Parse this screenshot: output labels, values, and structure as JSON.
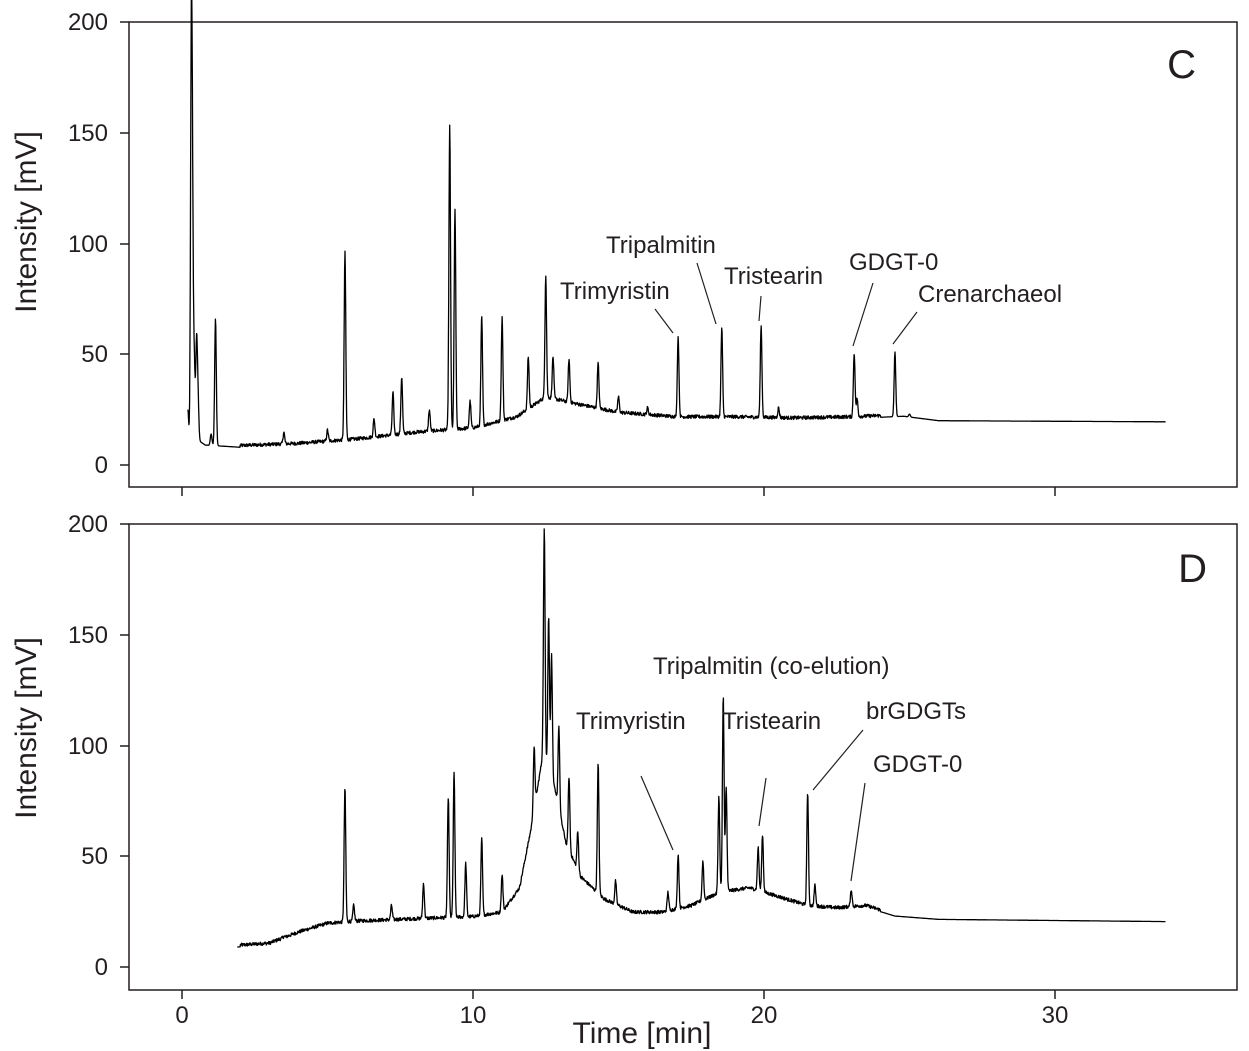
{
  "chart_data": [
    {
      "type": "line",
      "panel_label": "C",
      "xlabel": "",
      "ylabel": "Intensity [mV]",
      "xlim": [
        -1.8,
        36
      ],
      "ylim": [
        -10,
        200
      ],
      "x_ticks": [
        0,
        10,
        20,
        30
      ],
      "x_tick_labels": [
        "",
        "",
        "",
        ""
      ],
      "y_ticks": [
        0,
        50,
        100,
        150,
        200
      ],
      "y_tick_labels": [
        "0",
        "50",
        "100",
        "150",
        "200"
      ],
      "grid": false,
      "baseline": [
        [
          0.2,
          7
        ],
        [
          0.35,
          13
        ],
        [
          0.8,
          9
        ],
        [
          2,
          8
        ],
        [
          4,
          9
        ],
        [
          6,
          11
        ],
        [
          8,
          14
        ],
        [
          10,
          16
        ],
        [
          11.5,
          21
        ],
        [
          12.5,
          30
        ],
        [
          13.5,
          27
        ],
        [
          15,
          23
        ],
        [
          17,
          21
        ],
        [
          19,
          21
        ],
        [
          21,
          20.5
        ],
        [
          23,
          21
        ],
        [
          24.8,
          22
        ],
        [
          26,
          20
        ],
        [
          33.8,
          19.5
        ]
      ],
      "peaks": [
        {
          "x": 0.2,
          "y": 25
        },
        {
          "x": 0.32,
          "y": 180
        },
        {
          "x": 0.36,
          "y": 96
        },
        {
          "x": 0.42,
          "y": 45
        },
        {
          "x": 0.5,
          "y": 55
        },
        {
          "x": 0.55,
          "y": 30
        },
        {
          "x": 1.0,
          "y": 14
        },
        {
          "x": 1.15,
          "y": 66
        },
        {
          "x": 3.5,
          "y": 14
        },
        {
          "x": 5.0,
          "y": 15
        },
        {
          "x": 5.6,
          "y": 95
        },
        {
          "x": 6.6,
          "y": 20
        },
        {
          "x": 7.25,
          "y": 32
        },
        {
          "x": 7.55,
          "y": 39
        },
        {
          "x": 8.5,
          "y": 24
        },
        {
          "x": 9.2,
          "y": 152
        },
        {
          "x": 9.38,
          "y": 114
        },
        {
          "x": 9.9,
          "y": 28
        },
        {
          "x": 10.3,
          "y": 66
        },
        {
          "x": 11.0,
          "y": 66
        },
        {
          "x": 11.9,
          "y": 48
        },
        {
          "x": 12.5,
          "y": 85
        },
        {
          "x": 12.75,
          "y": 48
        },
        {
          "x": 13.3,
          "y": 47
        },
        {
          "x": 14.3,
          "y": 45
        },
        {
          "x": 15.0,
          "y": 30
        },
        {
          "x": 16.0,
          "y": 25
        },
        {
          "x": 17.05,
          "y": 57
        },
        {
          "x": 18.55,
          "y": 61
        },
        {
          "x": 19.9,
          "y": 62
        },
        {
          "x": 20.5,
          "y": 25
        },
        {
          "x": 23.1,
          "y": 50
        },
        {
          "x": 23.2,
          "y": 29
        },
        {
          "x": 24.5,
          "y": 51
        },
        {
          "x": 25.0,
          "y": 23
        }
      ],
      "annotations": [
        {
          "text": "Trimyristin",
          "x": 17.05,
          "y": 57
        },
        {
          "text": "Tripalmitin",
          "x": 18.55,
          "y": 61
        },
        {
          "text": "Tristearin",
          "x": 19.9,
          "y": 62
        },
        {
          "text": "GDGT-0",
          "x": 23.1,
          "y": 50
        },
        {
          "text": "Crenarchaeol",
          "x": 24.5,
          "y": 51
        }
      ]
    },
    {
      "type": "line",
      "panel_label": "D",
      "xlabel": "Time [min]",
      "ylabel": "Intensity [mV]",
      "xlim": [
        -1.8,
        36
      ],
      "ylim": [
        -10,
        200
      ],
      "x_ticks": [
        0,
        10,
        20,
        30
      ],
      "x_tick_labels": [
        "0",
        "10",
        "20",
        "30"
      ],
      "y_ticks": [
        0,
        50,
        100,
        150,
        200
      ],
      "y_tick_labels": [
        "0",
        "50",
        "100",
        "150",
        "200"
      ],
      "grid": false,
      "baseline": [
        [
          1.9,
          9
        ],
        [
          3,
          10
        ],
        [
          4,
          15
        ],
        [
          5,
          19
        ],
        [
          6,
          20
        ],
        [
          8,
          21
        ],
        [
          10,
          22
        ],
        [
          11,
          24
        ],
        [
          11.6,
          35
        ],
        [
          12,
          62
        ],
        [
          12.4,
          95
        ],
        [
          12.8,
          80
        ],
        [
          13.2,
          55
        ],
        [
          13.7,
          40
        ],
        [
          14.5,
          30
        ],
        [
          15.5,
          24
        ],
        [
          16.5,
          24
        ],
        [
          17.5,
          27
        ],
        [
          18.5,
          33
        ],
        [
          19.5,
          35
        ],
        [
          20.5,
          31
        ],
        [
          21.5,
          27
        ],
        [
          22.5,
          26
        ],
        [
          23.5,
          27
        ],
        [
          24.5,
          23
        ],
        [
          26,
          21.5
        ],
        [
          33.8,
          20.5
        ]
      ],
      "peaks": [
        {
          "x": 3.5,
          "y": 13
        },
        {
          "x": 5.6,
          "y": 80
        },
        {
          "x": 5.9,
          "y": 27
        },
        {
          "x": 7.2,
          "y": 27
        },
        {
          "x": 8.3,
          "y": 37
        },
        {
          "x": 9.15,
          "y": 76
        },
        {
          "x": 9.35,
          "y": 87
        },
        {
          "x": 9.75,
          "y": 46
        },
        {
          "x": 10.3,
          "y": 57
        },
        {
          "x": 11.0,
          "y": 41
        },
        {
          "x": 12.1,
          "y": 98
        },
        {
          "x": 12.45,
          "y": 197
        },
        {
          "x": 12.6,
          "y": 157
        },
        {
          "x": 12.7,
          "y": 140
        },
        {
          "x": 12.95,
          "y": 108
        },
        {
          "x": 13.3,
          "y": 85
        },
        {
          "x": 13.6,
          "y": 60
        },
        {
          "x": 14.3,
          "y": 91
        },
        {
          "x": 14.9,
          "y": 38
        },
        {
          "x": 16.7,
          "y": 33
        },
        {
          "x": 17.05,
          "y": 50
        },
        {
          "x": 17.9,
          "y": 47
        },
        {
          "x": 18.45,
          "y": 76
        },
        {
          "x": 18.6,
          "y": 121
        },
        {
          "x": 18.7,
          "y": 80
        },
        {
          "x": 19.8,
          "y": 53
        },
        {
          "x": 19.95,
          "y": 59
        },
        {
          "x": 21.5,
          "y": 78
        },
        {
          "x": 21.75,
          "y": 36
        },
        {
          "x": 23.0,
          "y": 34
        }
      ],
      "annotations": [
        {
          "text": "Trimyristin",
          "x": 17.05,
          "y": 50
        },
        {
          "text": "Tripalmitin (co-elution)",
          "x": 18.6,
          "y": 121
        },
        {
          "text": "Tristearin",
          "x": 19.95,
          "y": 59
        },
        {
          "text": "brGDGTs",
          "x": 21.5,
          "y": 78
        },
        {
          "text": "GDGT-0",
          "x": 23.0,
          "y": 34
        }
      ]
    }
  ]
}
